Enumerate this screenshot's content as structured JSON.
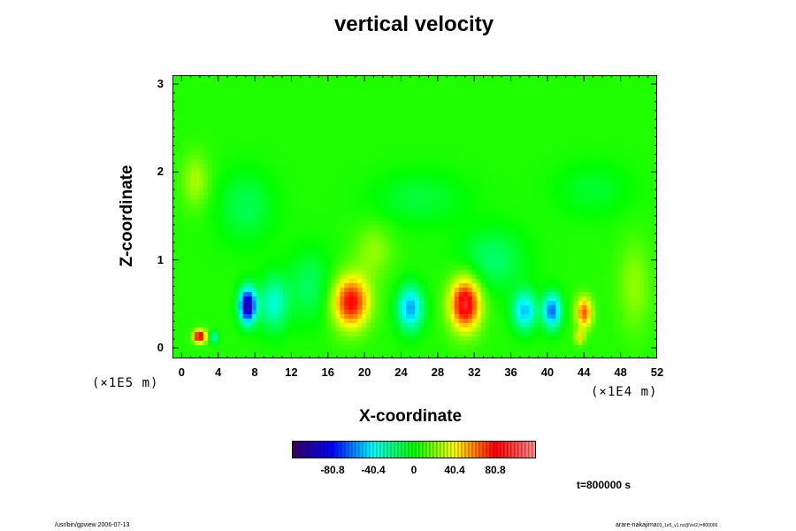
{
  "chart_data": {
    "type": "heatmap",
    "title": "vertical velocity",
    "xlabel": "X-coordinate",
    "ylabel": "Z-coordinate",
    "x_unit": "(×1E4 m)",
    "y_unit": "(×1E5 m)",
    "xlim": [
      -1,
      52
    ],
    "ylim": [
      -0.12,
      3.1
    ],
    "x_ticks": [
      0,
      4,
      8,
      12,
      16,
      20,
      24,
      28,
      32,
      36,
      40,
      44,
      48,
      52
    ],
    "x_tick_labels": [
      "0",
      "4",
      "8",
      "12",
      "16",
      "20",
      "24",
      "28",
      "32",
      "36",
      "40",
      "44",
      "48",
      "52"
    ],
    "y_ticks": [
      0,
      1,
      2,
      3
    ],
    "y_tick_labels": [
      "0",
      "1",
      "2",
      "3"
    ],
    "colorbar": {
      "range": [
        -121.2,
        121.2
      ],
      "ticks": [
        -80.8,
        -40.4,
        0,
        40.4,
        80.8
      ],
      "tick_labels": [
        "-80.8",
        "-40.4",
        "0",
        "40.4",
        "80.8"
      ],
      "colors": [
        "#3a0060",
        "#0000ff",
        "#00ffff",
        "#00ff00",
        "#ffff00",
        "#ff0000",
        "#ff9090"
      ]
    },
    "background_value": 5,
    "features": [
      {
        "x": 2.0,
        "z": 0.13,
        "value": 95,
        "sx": 0.7,
        "sz": 0.07
      },
      {
        "x": 3.5,
        "z": 0.12,
        "value": -40,
        "sx": 0.5,
        "sz": 0.06
      },
      {
        "x": 7.2,
        "z": 0.48,
        "value": -110,
        "sx": 0.9,
        "sz": 0.2
      },
      {
        "x": 10.0,
        "z": 0.5,
        "value": -38,
        "sx": 1.6,
        "sz": 0.3
      },
      {
        "x": 18.5,
        "z": 0.52,
        "value": 78,
        "sx": 2.0,
        "sz": 0.3
      },
      {
        "x": 25.0,
        "z": 0.45,
        "value": -60,
        "sx": 1.4,
        "sz": 0.25
      },
      {
        "x": 31.0,
        "z": 0.5,
        "value": 88,
        "sx": 1.7,
        "sz": 0.3
      },
      {
        "x": 37.5,
        "z": 0.42,
        "value": -55,
        "sx": 1.3,
        "sz": 0.22
      },
      {
        "x": 40.5,
        "z": 0.42,
        "value": -70,
        "sx": 1.0,
        "sz": 0.2
      },
      {
        "x": 44.0,
        "z": 0.4,
        "value": 62,
        "sx": 0.9,
        "sz": 0.18
      },
      {
        "x": 43.5,
        "z": 0.12,
        "value": 40,
        "sx": 0.5,
        "sz": 0.08
      },
      {
        "x": 14.0,
        "z": 0.7,
        "value": -20,
        "sx": 2.5,
        "sz": 0.4
      },
      {
        "x": 34.0,
        "z": 1.0,
        "value": -22,
        "sx": 3.5,
        "sz": 0.35
      },
      {
        "x": 7.0,
        "z": 1.6,
        "value": -18,
        "sx": 3.0,
        "sz": 0.4
      },
      {
        "x": 26.0,
        "z": 1.7,
        "value": -14,
        "sx": 5.0,
        "sz": 0.3
      },
      {
        "x": 45.0,
        "z": 1.8,
        "value": -12,
        "sx": 4.0,
        "sz": 0.3
      },
      {
        "x": 1.5,
        "z": 1.9,
        "value": 22,
        "sx": 1.5,
        "sz": 0.3
      },
      {
        "x": 49.5,
        "z": 0.7,
        "value": 18,
        "sx": 1.8,
        "sz": 0.5
      },
      {
        "x": 21.0,
        "z": 1.1,
        "value": 18,
        "sx": 2.0,
        "sz": 0.3
      }
    ]
  },
  "time_label": "t=800000 s",
  "footer": {
    "left": "/usr/bin/gpview 2006-07-13",
    "right_main": "arare-nakajima",
    "right_small": "03_1e5_v1.nc@Vel2,t=800000"
  }
}
